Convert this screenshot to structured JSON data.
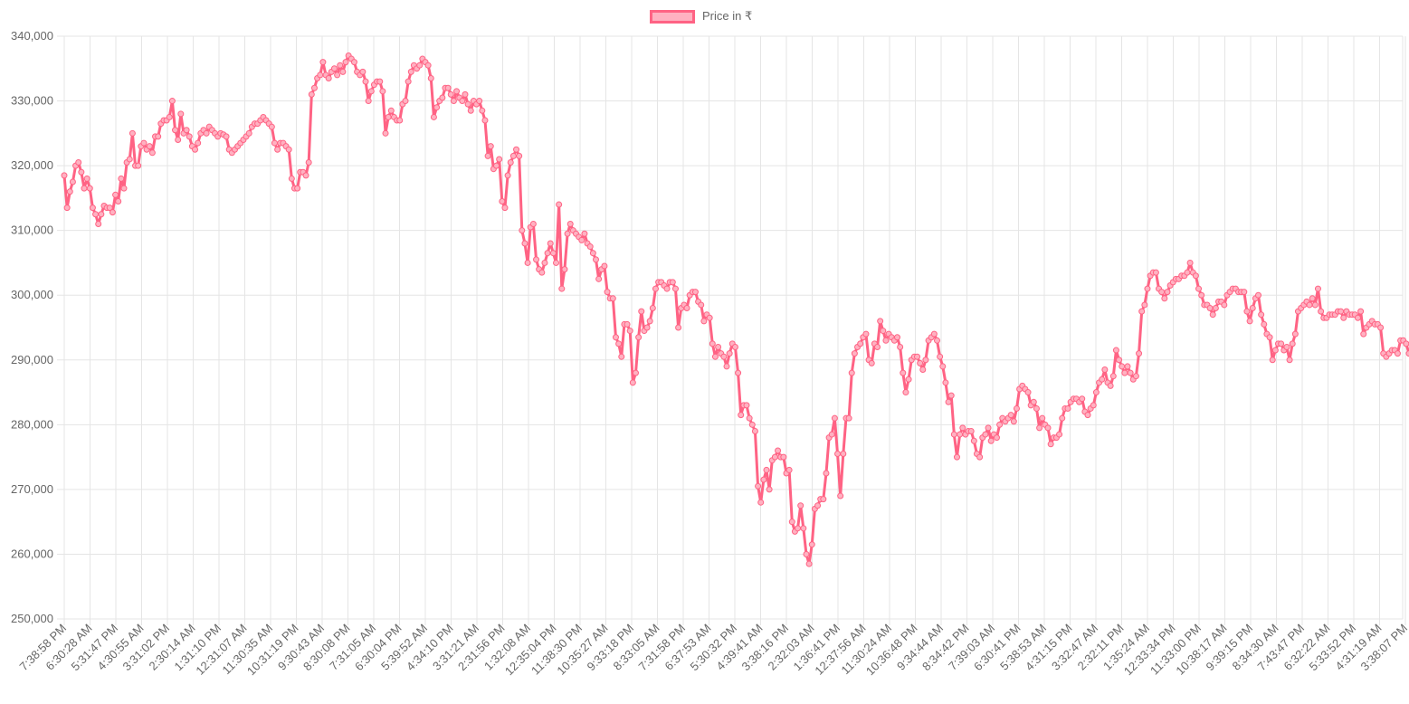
{
  "chart_data": {
    "type": "line",
    "title": "",
    "xlabel": "",
    "ylabel": "",
    "legend": {
      "position": "top",
      "labels": [
        "Price in ₹"
      ]
    },
    "grid": true,
    "colors": {
      "line": "#ff6384",
      "fill": "#ffb1c1",
      "grid": "#e5e5e5",
      "axis_text": "#666666"
    },
    "ylim": [
      250000,
      340000
    ],
    "y_ticks": [
      "250,000",
      "260,000",
      "270,000",
      "280,000",
      "290,000",
      "300,000",
      "310,000",
      "320,000",
      "330,000",
      "340,000"
    ],
    "x_tick_labels": [
      "7:38:58 PM",
      "6:30:28 AM",
      "5:31:47 PM",
      "4:30:55 AM",
      "3:31:02 PM",
      "2:30:14 AM",
      "1:31:10 PM",
      "12:31:07 AM",
      "11:30:35 AM",
      "10:31:19 PM",
      "9:30:43 AM",
      "8:30:08 PM",
      "7:31:05 AM",
      "6:30:04 PM",
      "5:39:52 AM",
      "4:34:10 PM",
      "3:31:21 AM",
      "2:31:56 PM",
      "1:32:08 AM",
      "12:35:04 PM",
      "11:38:30 PM",
      "10:35:27 AM",
      "9:33:18 PM",
      "8:33:05 AM",
      "7:31:58 PM",
      "6:37:53 AM",
      "5:30:32 PM",
      "4:39:41 AM",
      "3:38:16 PM",
      "2:32:03 AM",
      "1:36:41 PM",
      "12:37:56 AM",
      "11:30:24 AM",
      "10:36:48 PM",
      "9:34:44 AM",
      "8:34:42 PM",
      "7:39:03 AM",
      "6:30:41 PM",
      "5:38:53 AM",
      "4:31:15 PM",
      "3:32:47 AM",
      "2:32:11 PM",
      "1:35:24 AM",
      "12:33:34 PM",
      "11:33:00 PM",
      "10:38:17 AM",
      "9:39:15 PM",
      "8:34:30 AM",
      "7:43:47 PM",
      "6:32:22 AM",
      "5:33:52 PM",
      "4:31:19 AM",
      "3:38:07 PM"
    ],
    "series": [
      {
        "name": "Price in ₹",
        "values": [
          318500,
          313500,
          316000,
          317500,
          320000,
          320500,
          319000,
          316500,
          318000,
          316500,
          313500,
          312500,
          311000,
          312500,
          313800,
          313500,
          313500,
          312800,
          315500,
          314500,
          318000,
          316500,
          320500,
          321000,
          325000,
          320000,
          320000,
          323000,
          323500,
          322500,
          323000,
          322000,
          324500,
          324500,
          326500,
          327000,
          327000,
          327500,
          330000,
          325500,
          324000,
          328000,
          325000,
          325500,
          324500,
          323000,
          322500,
          323500,
          325000,
          325500,
          325000,
          326000,
          325500,
          325000,
          324500,
          325000,
          324800,
          324500,
          322500,
          322000,
          322500,
          323000,
          323500,
          324000,
          324500,
          325000,
          326000,
          326500,
          326500,
          327000,
          327500,
          327000,
          326500,
          326000,
          323500,
          322500,
          323500,
          323500,
          323000,
          322500,
          318000,
          316500,
          316500,
          319000,
          319000,
          318500,
          320500,
          331000,
          332000,
          333500,
          334000,
          336000,
          334000,
          333500,
          334500,
          335000,
          334000,
          335500,
          334500,
          336000,
          337000,
          336500,
          336000,
          334500,
          334000,
          334500,
          333000,
          330000,
          331500,
          332500,
          333000,
          333000,
          331500,
          325000,
          327500,
          328500,
          327500,
          327000,
          327000,
          329500,
          330000,
          333000,
          334500,
          335500,
          335000,
          335500,
          336500,
          336000,
          335500,
          333500,
          327500,
          329000,
          330000,
          330500,
          332000,
          332000,
          331000,
          330000,
          331500,
          330500,
          330000,
          331000,
          329500,
          328500,
          330000,
          329500,
          330000,
          328500,
          327000,
          321500,
          323000,
          319500,
          320000,
          321000,
          314500,
          313500,
          318500,
          320500,
          321500,
          322500,
          321500,
          310000,
          308000,
          305000,
          310500,
          311000,
          305500,
          304000,
          303500,
          305000,
          306500,
          308000,
          306500,
          305000,
          314000,
          301000,
          304000,
          309500,
          311000,
          310000,
          309500,
          309000,
          308500,
          309500,
          308000,
          307500,
          306500,
          305500,
          302500,
          304000,
          304500,
          300500,
          299500,
          299500,
          293500,
          292500,
          290500,
          295500,
          295500,
          294500,
          286500,
          288000,
          293500,
          297500,
          294500,
          295000,
          296000,
          298000,
          301000,
          302000,
          302000,
          301500,
          301000,
          302000,
          302000,
          301000,
          295000,
          298000,
          298500,
          298000,
          300000,
          300500,
          300500,
          299000,
          298500,
          296000,
          297000,
          296500,
          292500,
          290500,
          292000,
          291000,
          290500,
          289000,
          291000,
          292500,
          292000,
          288000,
          281500,
          283000,
          283000,
          281000,
          280000,
          279000,
          270500,
          268000,
          271500,
          273000,
          270000,
          274500,
          275000,
          276000,
          275000,
          275000,
          272500,
          273000,
          265000,
          263500,
          264000,
          267500,
          264000,
          260000,
          258500,
          261500,
          267000,
          267500,
          268500,
          268500,
          272500,
          278000,
          278500,
          281000,
          275500,
          269000,
          275500,
          281000,
          281000,
          288000,
          291000,
          292000,
          292500,
          293500,
          294000,
          290000,
          289500,
          292500,
          292000,
          296000,
          294500,
          293000,
          294000,
          293500,
          293000,
          293500,
          292000,
          288000,
          285000,
          287000,
          290000,
          290500,
          290500,
          289500,
          288500,
          290000,
          293000,
          293500,
          294000,
          293000,
          290500,
          289000,
          286500,
          283500,
          284500,
          278500,
          275000,
          278500,
          279500,
          278500,
          279000,
          279000,
          277500,
          275500,
          275000,
          278000,
          278500,
          279500,
          277500,
          278500,
          278000,
          280000,
          281000,
          280500,
          281000,
          281500,
          280500,
          282500,
          285500,
          286000,
          285500,
          285000,
          283000,
          283500,
          282500,
          279500,
          281000,
          280000,
          279500,
          277000,
          278000,
          278000,
          278500,
          281000,
          282500,
          282500,
          283500,
          284000,
          284000,
          283500,
          284000,
          282000,
          281500,
          282500,
          283000,
          285000,
          286500,
          287000,
          288500,
          286500,
          286000,
          287500,
          291500,
          290000,
          289000,
          288000,
          289000,
          288000,
          287000,
          287500,
          291000,
          297500,
          298500,
          301000,
          303000,
          303500,
          303500,
          301000,
          300500,
          299500,
          300500,
          301500,
          302000,
          302500,
          302500,
          303000,
          303000,
          303500,
          305000,
          303500,
          303000,
          301000,
          300000,
          298500,
          298500,
          298000,
          297000,
          298000,
          299000,
          299000,
          298500,
          300000,
          300500,
          301000,
          301000,
          300500,
          300500,
          300500,
          297500,
          296000,
          298000,
          299500,
          300000,
          297000,
          295500,
          294000,
          293500,
          290000,
          291500,
          292500,
          292500,
          291500,
          292000,
          290000,
          292500,
          294000,
          297500,
          298000,
          298500,
          299000,
          298500,
          299500,
          298500,
          301000,
          297500,
          296500,
          296500,
          297000,
          297000,
          297000,
          297500,
          297500,
          296500,
          297500,
          297000,
          297000,
          297000,
          296500,
          297500,
          294000,
          295000,
          295500,
          296000,
          295500,
          295500,
          295000,
          291000,
          290500,
          291000,
          291500,
          291500,
          291000,
          293000,
          293000,
          292500,
          291000,
          292500,
          291500,
          292000,
          293500,
          294500,
          296500,
          295500
        ]
      }
    ]
  }
}
